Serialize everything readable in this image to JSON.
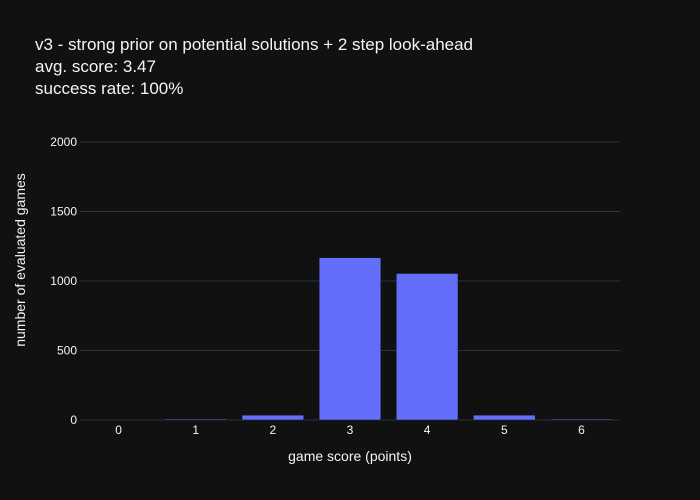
{
  "chart_data": {
    "type": "bar",
    "title_lines": [
      "v3 - strong prior on potential solutions + 2 step look-ahead",
      "avg. score: 3.47",
      "success rate: 100%"
    ],
    "xlabel": "game score (points)",
    "ylabel": "number of evaluated games",
    "categories": [
      "0",
      "1",
      "2",
      "3",
      "4",
      "5",
      "6"
    ],
    "x": [
      0,
      1,
      2,
      3,
      4,
      5,
      6
    ],
    "values": [
      0,
      2,
      35,
      1168,
      1054,
      35,
      2
    ],
    "ylim": [
      0,
      2000
    ],
    "yticks": [
      0,
      500,
      1000,
      1500,
      2000
    ],
    "ytick_labels": [
      "0",
      "500",
      "1000",
      "1500",
      "2000"
    ],
    "grid": true,
    "legend": "none",
    "colors": {
      "background": "#111111",
      "bar": "#636efa",
      "grid": "#283442",
      "text": "#f2f5fa"
    }
  }
}
